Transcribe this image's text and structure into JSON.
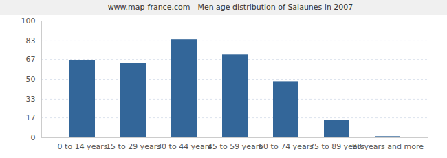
{
  "chart_data": {
    "type": "bar",
    "title": "www.map-france.com - Men age distribution of Salaunes in 2007",
    "categories": [
      "0 to 14 years",
      "15 to 29 years",
      "30 to 44 years",
      "45 to 59 years",
      "60 to 74 years",
      "75 to 89 years",
      "90 years and more"
    ],
    "values": [
      66,
      64,
      84,
      71,
      48,
      15,
      1
    ],
    "color": "#336699",
    "ylim": [
      0,
      100
    ],
    "yticks": [
      0,
      17,
      33,
      50,
      67,
      83,
      100
    ],
    "grid": true
  }
}
